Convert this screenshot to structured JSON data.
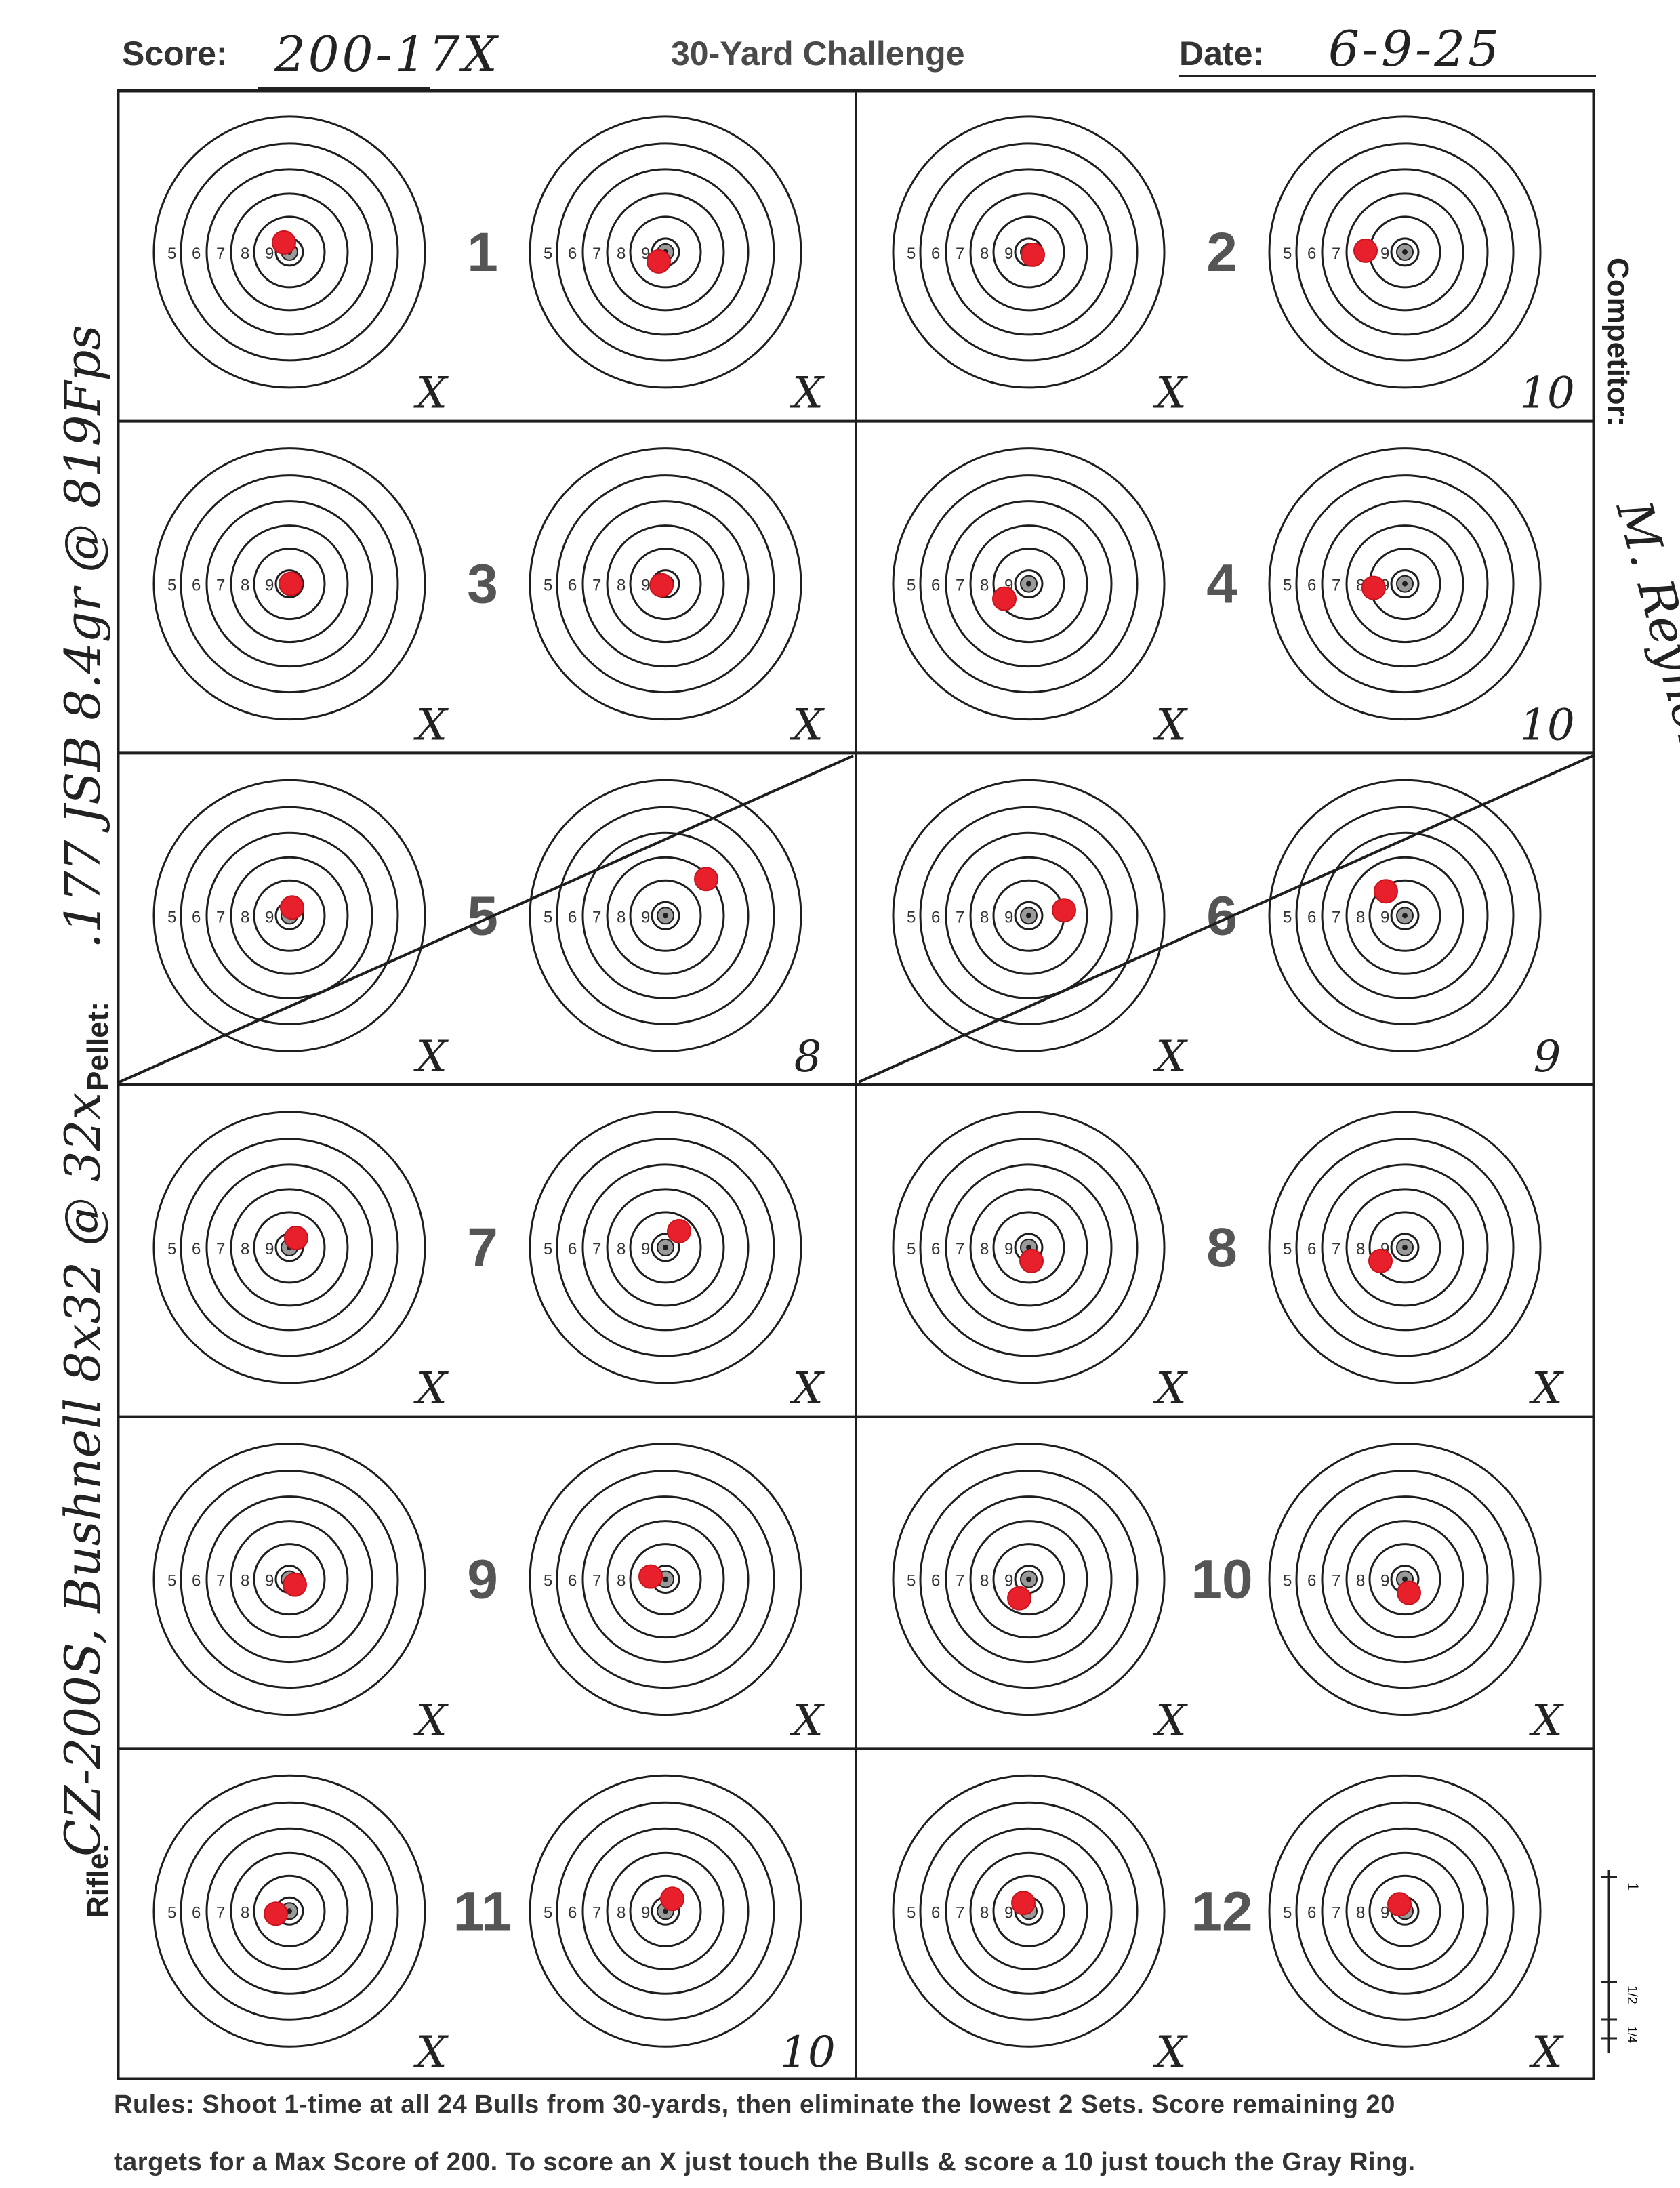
{
  "header": {
    "score_label": "Score:",
    "score_value": "200-17X",
    "title": "30-Yard Challenge",
    "date_label": "Date:",
    "date_value": "6-9-25"
  },
  "sidebar_left": {
    "pellet_label": "Pellet:",
    "pellet_value": ".177 JSB 8.4gr @ 819Fps",
    "rifle_label": "Rifle:",
    "rifle_value": "CZ-200S, Bushnell 8x32 @ 32x"
  },
  "sidebar_right": {
    "competitor_label": "Competitor:",
    "competitor_value": "M. Reynolds"
  },
  "ring_numbers": [
    "5",
    "6",
    "7",
    "8",
    "9"
  ],
  "sets": [
    {
      "number": "1",
      "marks": [
        "X",
        "X"
      ]
    },
    {
      "number": "2",
      "marks": [
        "X",
        "10"
      ]
    },
    {
      "number": "3",
      "marks": [
        "X",
        "X"
      ]
    },
    {
      "number": "4",
      "marks": [
        "X",
        "10"
      ]
    },
    {
      "number": "5",
      "marks": [
        "X",
        "8"
      ],
      "eliminated": true
    },
    {
      "number": "6",
      "marks": [
        "X",
        "9"
      ],
      "eliminated": true
    },
    {
      "number": "7",
      "marks": [
        "X",
        "X"
      ]
    },
    {
      "number": "8",
      "marks": [
        "X",
        "X"
      ]
    },
    {
      "number": "9",
      "marks": [
        "X",
        "X"
      ]
    },
    {
      "number": "10",
      "marks": [
        "X",
        "X"
      ]
    },
    {
      "number": "11",
      "marks": [
        "X",
        "10"
      ]
    },
    {
      "number": "12",
      "marks": [
        "X",
        "X"
      ]
    }
  ],
  "scale_marks": [
    "1",
    "1/2",
    "1/4"
  ],
  "rules": {
    "line1": "Rules: Shoot 1-time at all 24 Bulls from 30-yards, then eliminate the lowest 2 Sets. Score remaining 20",
    "line2": "targets for a Max Score of 200. To score an X just touch the Bulls & score a 10 just touch the Gray Ring."
  },
  "colors": {
    "ink": "#1e1e1e",
    "pellet_hole": "#e8202c",
    "center_gray": "#9a9a9a"
  }
}
